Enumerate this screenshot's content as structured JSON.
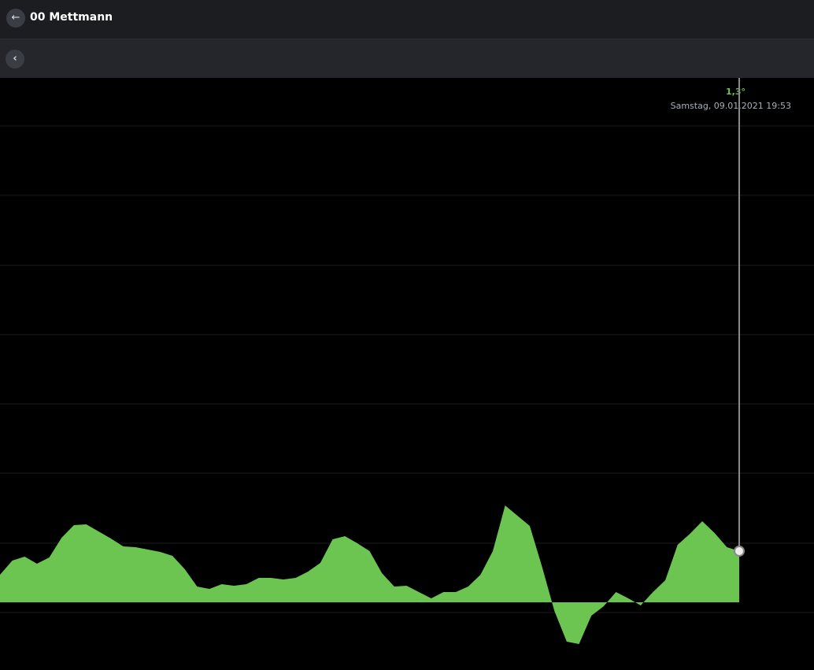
{
  "header": {
    "title": "00 Mettmann"
  },
  "cursor": {
    "label": "1,3°",
    "date": "Samstag, 09.01.2021 19:53"
  },
  "chart_data": {
    "type": "area",
    "color": "#6cc551",
    "grid": true,
    "ylim": [
      -1.72,
      13.32
    ],
    "yticks": [
      12.1,
      10.34,
      8.56,
      6.8,
      5.04,
      3.28,
      1.5,
      -0.26
    ],
    "values": [
      0.7,
      1.06,
      1.16,
      0.98,
      1.14,
      1.64,
      1.96,
      1.98,
      1.8,
      1.62,
      1.42,
      1.4,
      1.34,
      1.28,
      1.18,
      0.84,
      0.4,
      0.34,
      0.46,
      0.42,
      0.46,
      0.62,
      0.62,
      0.58,
      0.62,
      0.78,
      1.0,
      1.6,
      1.68,
      1.5,
      1.3,
      0.74,
      0.4,
      0.42,
      0.26,
      0.1,
      0.26,
      0.26,
      0.4,
      0.7,
      1.3,
      2.46,
      2.2,
      1.94,
      0.9,
      -0.22,
      -1.0,
      -1.06,
      -0.34,
      -0.1,
      0.26,
      0.1,
      -0.08,
      0.26,
      0.56,
      1.46,
      1.74,
      2.06,
      1.76,
      1.4,
      1.3
    ]
  }
}
